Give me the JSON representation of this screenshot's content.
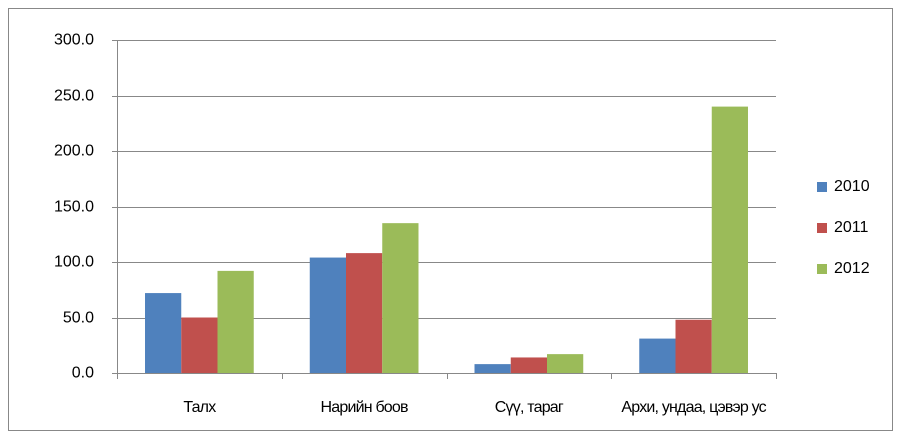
{
  "chart_data": {
    "type": "bar",
    "categories": [
      "Талх",
      "Нарийн боов",
      "Сүү, тараг",
      "Архи, ундаа, цэвэр ус"
    ],
    "series": [
      {
        "name": "2010",
        "color": "#4f81bd",
        "values": [
          72,
          104,
          8,
          31
        ]
      },
      {
        "name": "2011",
        "color": "#c0504d",
        "values": [
          50,
          108,
          14,
          48
        ]
      },
      {
        "name": "2012",
        "color": "#9bbb59",
        "values": [
          92,
          135,
          17,
          240
        ]
      }
    ],
    "ylim": [
      0,
      300
    ],
    "yticks": [
      {
        "value": 0,
        "label": "0.0"
      },
      {
        "value": 50,
        "label": "50.0"
      },
      {
        "value": 100,
        "label": "100.0"
      },
      {
        "value": 150,
        "label": "150.0"
      },
      {
        "value": 200,
        "label": "200.0"
      },
      {
        "value": 250,
        "label": "250.0"
      },
      {
        "value": 300,
        "label": "300.0"
      }
    ],
    "grid": true,
    "legend": "right"
  }
}
